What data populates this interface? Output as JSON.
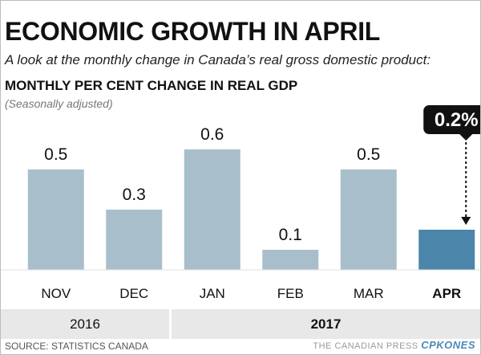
{
  "title": "ECONOMIC GROWTH IN APRIL",
  "subtitle": "A look at the monthly change in Canada’s real gross domestic product:",
  "chart_data": {
    "type": "bar",
    "title": "MONTHLY PER CENT CHANGE IN REAL GDP",
    "subtitle": "(Seasonally adjusted)",
    "categories": [
      "NOV",
      "DEC",
      "JAN",
      "FEB",
      "MAR",
      "APR"
    ],
    "values": [
      0.5,
      0.3,
      0.6,
      0.1,
      0.5,
      0.2
    ],
    "value_labels": [
      "0.5",
      "0.3",
      "0.6",
      "0.1",
      "0.5",
      "0.2%"
    ],
    "years": [
      {
        "label": "2016",
        "months": [
          "NOV",
          "DEC"
        ]
      },
      {
        "label": "2017",
        "months": [
          "JAN",
          "FEB",
          "MAR",
          "APR"
        ]
      }
    ],
    "highlight_category": "APR",
    "colors": {
      "bar": "#a8bfcb",
      "highlight": "#4b86aa",
      "callout": "#111111"
    },
    "xlabel": "",
    "ylabel": "",
    "ylim": [
      0,
      0.6
    ],
    "grid": false,
    "legend": "none"
  },
  "source": "SOURCE: STATISTICS CANADA",
  "credit": {
    "prefix": "THE CANADIAN PRESS",
    "logo_text": "CPKONES"
  }
}
